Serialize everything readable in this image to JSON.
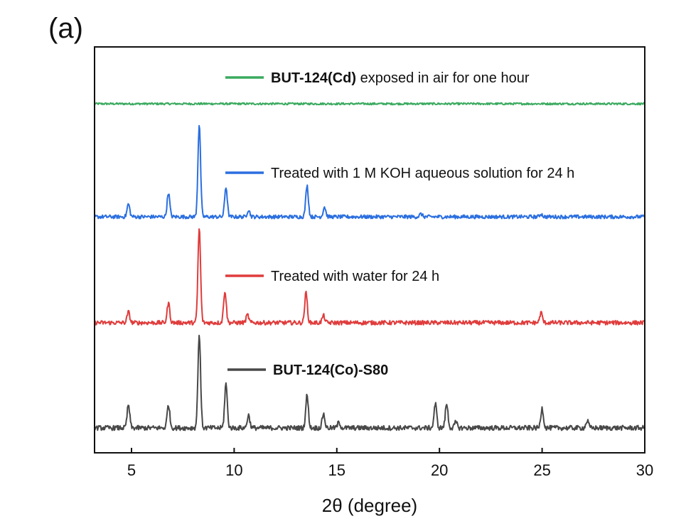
{
  "panel_label": "(a)",
  "chart_data": {
    "type": "line",
    "title": "",
    "xlabel": "2θ (degree)",
    "ylabel": "",
    "xlim": [
      3.2,
      30
    ],
    "xticks": [
      5,
      10,
      15,
      20,
      25,
      30
    ],
    "y_axis_ticks_shown": false,
    "grid": false,
    "series": [
      {
        "name_bold": "BUT-124(Cd)",
        "name_rest": " exposed in air for one hour",
        "color": "#3aaa5f",
        "baseline": 0.0,
        "peaks": []
      },
      {
        "name_bold": "",
        "name_rest": "Treated with 1 M KOH aqueous solution for 24 h",
        "color": "#2b6fe0",
        "baseline": 0.0,
        "peaks": [
          [
            4.85,
            18
          ],
          [
            6.8,
            34
          ],
          [
            8.3,
            130
          ],
          [
            9.6,
            42
          ],
          [
            10.7,
            10
          ],
          [
            13.55,
            44
          ],
          [
            14.4,
            14
          ],
          [
            19.1,
            4
          ],
          [
            24.95,
            4
          ]
        ]
      },
      {
        "name_bold": "",
        "name_rest": "Treated with water for 24 h",
        "color": "#e03c3c",
        "baseline": 0.0,
        "peaks": [
          [
            4.85,
            15
          ],
          [
            6.8,
            28
          ],
          [
            8.3,
            133
          ],
          [
            9.55,
            45
          ],
          [
            10.65,
            11
          ],
          [
            13.5,
            42
          ],
          [
            14.35,
            10
          ],
          [
            24.95,
            14
          ]
        ]
      },
      {
        "name_bold": "BUT-124(Co)-S80",
        "name_rest": "",
        "color": "#484848",
        "baseline": 0.0,
        "peaks": [
          [
            4.85,
            32
          ],
          [
            6.8,
            33
          ],
          [
            8.3,
            132
          ],
          [
            9.6,
            62
          ],
          [
            10.7,
            18
          ],
          [
            13.55,
            46
          ],
          [
            14.35,
            20
          ],
          [
            15.1,
            8
          ],
          [
            19.8,
            34
          ],
          [
            20.35,
            34
          ],
          [
            20.8,
            8
          ],
          [
            25.0,
            28
          ],
          [
            27.2,
            10
          ]
        ]
      }
    ]
  }
}
